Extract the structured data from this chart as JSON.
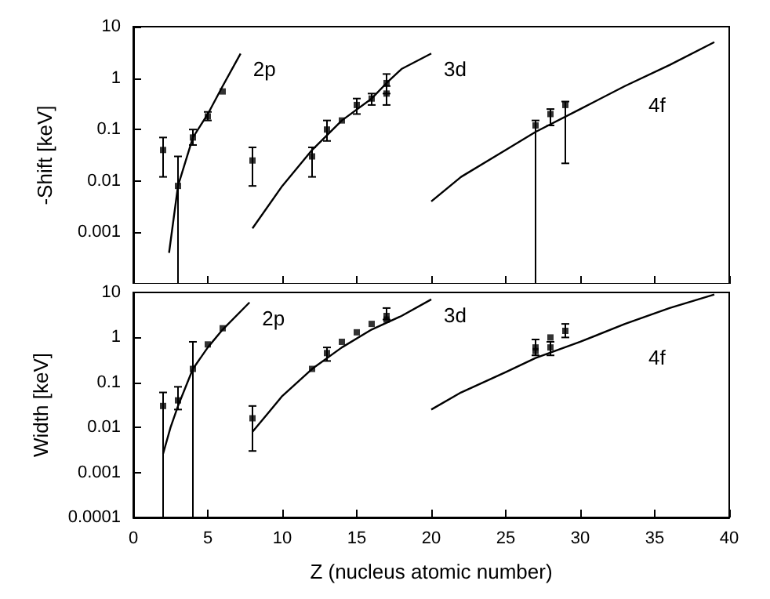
{
  "chart_data": [
    {
      "type": "scatter",
      "ylabel": "-Shift [keV]",
      "log": "y",
      "xlim": [
        0,
        40
      ],
      "xticks": [
        0,
        5,
        10,
        15,
        20,
        25,
        30,
        35,
        40
      ],
      "ylim": [
        0.0001,
        10
      ],
      "yticks": [
        {
          "value": 0.0001,
          "label": null
        },
        0.001,
        0.01,
        0.1,
        1,
        10
      ],
      "tick_labels": "y",
      "grid": false,
      "series": [
        {
          "type": "line",
          "name": "2p",
          "color": "#000000",
          "marker": "none",
          "x": [
            2.4,
            3,
            4,
            5,
            6,
            7.2
          ],
          "values": [
            0.0004,
            0.008,
            0.07,
            0.2,
            0.7,
            3
          ]
        },
        {
          "type": "line",
          "name": "3d",
          "color": "#000000",
          "marker": "none",
          "x": [
            8,
            10,
            12,
            14,
            16,
            17,
            18,
            20
          ],
          "values": [
            0.0012,
            0.008,
            0.04,
            0.15,
            0.4,
            0.8,
            1.5,
            3
          ]
        },
        {
          "type": "line",
          "name": "4f",
          "color": "#000000",
          "marker": "none",
          "x": [
            20,
            22,
            25,
            27,
            30,
            33,
            36,
            39
          ],
          "values": [
            0.004,
            0.012,
            0.04,
            0.09,
            0.25,
            0.7,
            1.8,
            5
          ]
        },
        {
          "color": "#000000",
          "marker": "square",
          "x": [
            2,
            3,
            4,
            5,
            6,
            8,
            12,
            13,
            14,
            15,
            16,
            17,
            17,
            27,
            28,
            29
          ],
          "values": [
            0.04,
            0.008,
            0.07,
            0.18,
            0.55,
            0.025,
            0.03,
            0.1,
            0.15,
            0.3,
            0.4,
            0.8,
            0.5,
            0.12,
            0.2,
            0.3
          ],
          "errors": [
            [
              0.012,
              0.07
            ],
            [
              0.0001,
              0.03
            ],
            [
              0.05,
              0.1
            ],
            [
              0.15,
              0.22
            ],
            null,
            [
              0.008,
              0.045
            ],
            [
              0.012,
              0.045
            ],
            [
              0.06,
              0.15
            ],
            null,
            [
              0.2,
              0.4
            ],
            [
              0.3,
              0.5
            ],
            [
              0.5,
              1.2
            ],
            [
              0.3,
              0.7
            ],
            [
              0.0001,
              0.15
            ],
            [
              0.12,
              0.25
            ],
            [
              0.022,
              0.35
            ]
          ]
        }
      ]
    },
    {
      "type": "scatter",
      "xlabel": "Z (nucleus atomic number)",
      "ylabel": "Width [keV]",
      "log": "y",
      "xlim": [
        0,
        40
      ],
      "xticks": [
        0,
        5,
        10,
        15,
        20,
        25,
        30,
        35,
        40
      ],
      "ylim": [
        0.0001,
        10
      ],
      "yticks": [
        0.0001,
        0.001,
        0.01,
        0.1,
        1,
        10
      ],
      "grid": false,
      "series": [
        {
          "type": "line",
          "name": "2p",
          "color": "#000000",
          "marker": "none",
          "x": [
            2,
            2.5,
            3,
            4,
            5,
            6,
            7.8
          ],
          "values": [
            0.0026,
            0.01,
            0.03,
            0.2,
            0.6,
            1.5,
            6
          ]
        },
        {
          "type": "line",
          "name": "3d",
          "color": "#000000",
          "marker": "none",
          "x": [
            8,
            9,
            10,
            12,
            14,
            16,
            18,
            20
          ],
          "values": [
            0.008,
            0.02,
            0.05,
            0.2,
            0.6,
            1.5,
            3,
            7
          ]
        },
        {
          "type": "line",
          "name": "4f",
          "color": "#000000",
          "marker": "none",
          "x": [
            20,
            22,
            25,
            27,
            30,
            33,
            36,
            39
          ],
          "values": [
            0.025,
            0.06,
            0.17,
            0.35,
            0.8,
            2,
            4.5,
            9
          ]
        },
        {
          "color": "#000000",
          "marker": "square",
          "x": [
            2,
            3,
            4,
            5,
            6,
            8,
            12,
            13,
            14,
            15,
            16,
            17,
            17,
            27,
            27,
            28,
            28,
            29
          ],
          "values": [
            0.03,
            0.04,
            0.2,
            0.7,
            1.6,
            0.016,
            0.2,
            0.45,
            0.8,
            1.3,
            2,
            3,
            2.5,
            0.6,
            0.5,
            0.6,
            1,
            1.4
          ],
          "errors": [
            [
              0.0001,
              0.06
            ],
            [
              0.025,
              0.08
            ],
            [
              0.0001,
              0.8
            ],
            null,
            null,
            [
              0.003,
              0.03
            ],
            null,
            [
              0.3,
              0.6
            ],
            null,
            null,
            null,
            [
              2.5,
              4.5
            ],
            null,
            [
              0.4,
              0.9
            ],
            null,
            [
              0.4,
              0.8
            ],
            null,
            [
              1,
              2
            ]
          ]
        }
      ]
    }
  ]
}
